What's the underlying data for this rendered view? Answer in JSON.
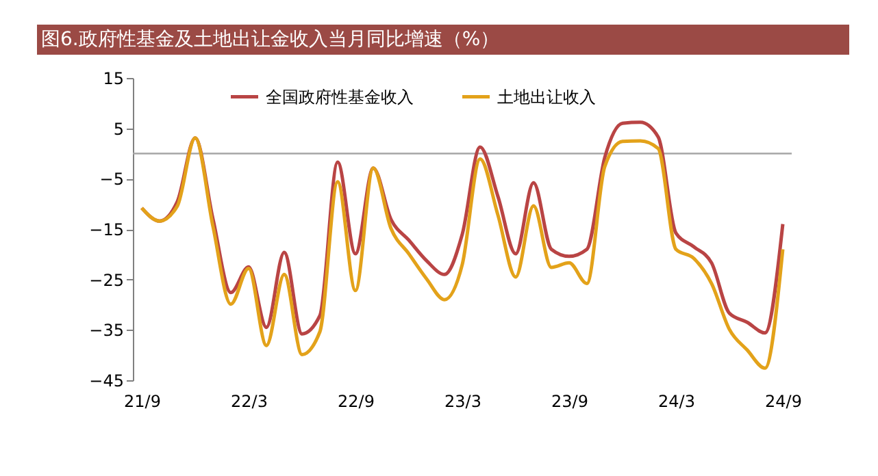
{
  "chart_data": {
    "type": "line",
    "title": "图6.政府性基金及土地出让金收入当月同比增速（%）",
    "categories": [
      "21/9",
      null,
      null,
      null,
      null,
      null,
      "22/3",
      null,
      null,
      null,
      null,
      null,
      "22/9",
      null,
      null,
      null,
      null,
      null,
      "23/3",
      null,
      null,
      null,
      null,
      null,
      "23/9",
      null,
      null,
      null,
      null,
      null,
      "24/3",
      null,
      null,
      null,
      null,
      null,
      "24/9"
    ],
    "series": [
      {
        "name": "全国政府性基金收入",
        "color": "#b94444",
        "values": [
          -10.8,
          -13.4,
          -9.5,
          3.1,
          -13,
          -27.6,
          -22.5,
          -34.5,
          -19.6,
          -35.8,
          -32.2,
          -1.7,
          -19.9,
          -2.9,
          -13.1,
          -17.2,
          -21.3,
          -24,
          -16,
          1.3,
          -8.5,
          -19.9,
          -5.8,
          -19,
          -20.4,
          -19,
          -0.8,
          6,
          6.2,
          3.3,
          -15.8,
          -18.5,
          -21.7,
          -31.7,
          -33.5,
          -35.6,
          -14
        ]
      },
      {
        "name": "土地出让收入",
        "color": "#e3a21a",
        "values": [
          -10.8,
          -13.4,
          -10.4,
          3.1,
          -14.5,
          -29.9,
          -22.8,
          -38.1,
          -24,
          -39.9,
          -35.4,
          -5.6,
          -27.2,
          -2.9,
          -14.9,
          -19.9,
          -24.9,
          -29,
          -22,
          -1.1,
          -12.2,
          -24.5,
          -10.4,
          -22.6,
          -21.7,
          -25.8,
          -2.6,
          2.4,
          2.5,
          1,
          -19,
          -20.8,
          -25.8,
          -34.9,
          -39,
          -42.6,
          -19
        ]
      }
    ],
    "ylim": [
      -45,
      15
    ],
    "yticks": [
      -45,
      -35,
      -25,
      -15,
      -5,
      5,
      15
    ],
    "ref_lines": [
      {
        "axis": "y",
        "value": 0,
        "color": "#a6a6a6"
      }
    ],
    "legend": "top",
    "grid": false,
    "marker": "none",
    "line_style": "solid"
  }
}
